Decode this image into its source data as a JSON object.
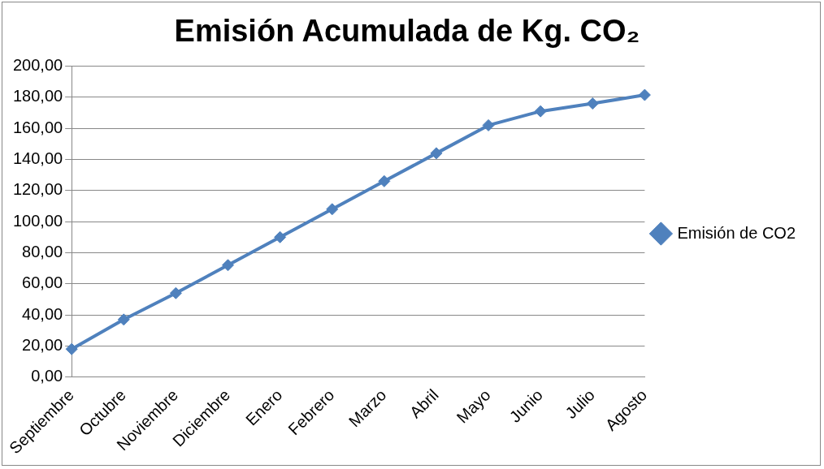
{
  "chart_data": {
    "type": "line",
    "title": "Emisión Acumulada de Kg. CO₂",
    "categories": [
      "Septiembre",
      "Octubre",
      "Noviembre",
      "Diciembre",
      "Enero",
      "Febrero",
      "Marzo",
      "Abril",
      "Mayo",
      "Junio",
      "Julio",
      "Agosto"
    ],
    "series": [
      {
        "name": "Emisión de CO2",
        "color": "#4f81bd",
        "values": [
          18,
          37,
          54,
          72,
          90,
          108,
          126,
          144,
          162,
          171,
          176,
          181.5
        ]
      }
    ],
    "ylim": [
      0,
      200
    ],
    "yticks": [
      {
        "value": 0,
        "label": "0,00"
      },
      {
        "value": 20,
        "label": "20,00"
      },
      {
        "value": 40,
        "label": "40,00"
      },
      {
        "value": 60,
        "label": "60,00"
      },
      {
        "value": 80,
        "label": "80,00"
      },
      {
        "value": 100,
        "label": "100,00"
      },
      {
        "value": 120,
        "label": "120,00"
      },
      {
        "value": 140,
        "label": "140,00"
      },
      {
        "value": 160,
        "label": "160,00"
      },
      {
        "value": 180,
        "label": "180,00"
      },
      {
        "value": 200,
        "label": "200,00"
      }
    ],
    "grid": "y",
    "legend": "right",
    "marker": "diamond",
    "line_style": "solid"
  }
}
